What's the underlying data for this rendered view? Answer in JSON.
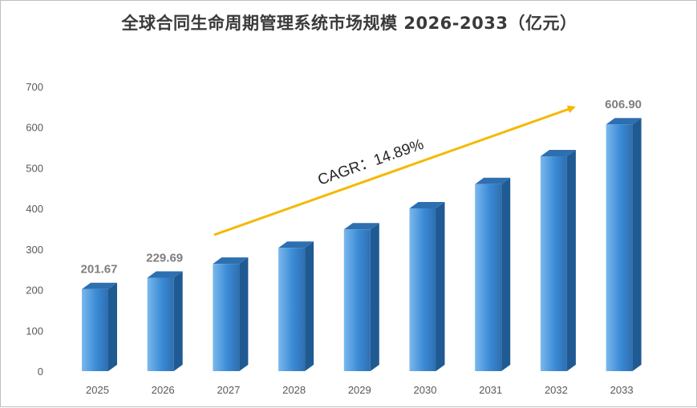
{
  "chart_data": {
    "type": "bar",
    "title": "全球合同生命周期管理系统市场规模 2026-2033（亿元）",
    "categories": [
      "2025",
      "2026",
      "2027",
      "2028",
      "2029",
      "2030",
      "2031",
      "2032",
      "2033"
    ],
    "values": [
      201.67,
      229.69,
      263.9,
      303.2,
      348.4,
      400.3,
      459.9,
      528.4,
      606.9
    ],
    "data_labels": [
      "201.67",
      "229.69",
      "",
      "",
      "",
      "",
      "",
      "",
      "606.90"
    ],
    "ylim": [
      0,
      700
    ],
    "yticks": [
      "0",
      "100",
      "200",
      "300",
      "400",
      "500",
      "600",
      "700"
    ],
    "annotation": "CAGR：14.89%",
    "grid": false,
    "legend": "none",
    "colors": {
      "bar_front": "#3a8ad6",
      "bar_front_light": "#7ab8ec",
      "bar_top": "#2e6fb0",
      "bar_side": "#1f5a92",
      "arrow": "#f5b800"
    }
  }
}
